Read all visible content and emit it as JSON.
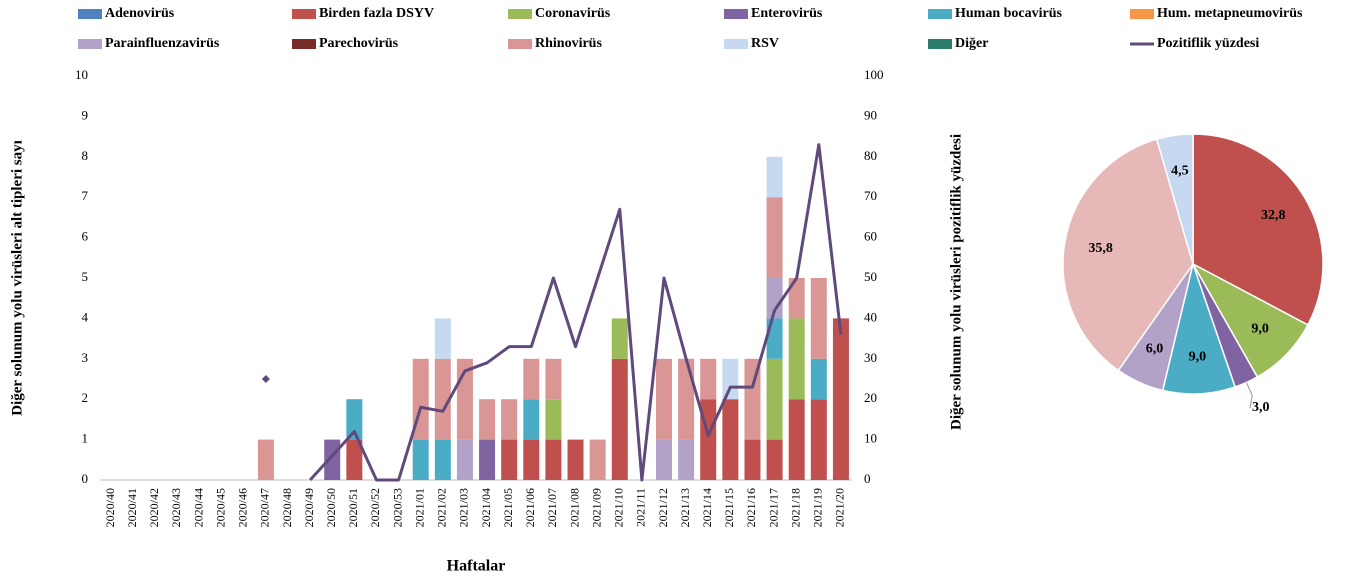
{
  "chart_data": [
    {
      "type": "bar",
      "stacked": true,
      "xlabel": "Haftalar",
      "ylabel": "Diğer solunum yolu virüsleri alt tipleri sayı",
      "y2label": "Diğer solunum yolu virüsleri pozitiflik yüzdesi",
      "categories": [
        "2020/40",
        "2020/41",
        "2020/42",
        "2020/43",
        "2020/44",
        "2020/45",
        "2020/46",
        "2020/47",
        "2020/48",
        "2020/49",
        "2020/50",
        "2020/51",
        "2020/52",
        "2020/53",
        "2021/01",
        "2021/02",
        "2021/03",
        "2021/04",
        "2021/05",
        "2021/06",
        "2021/07",
        "2021/08",
        "2021/09",
        "2021/10",
        "2021/11",
        "2021/12",
        "2021/13",
        "2021/14",
        "2021/15",
        "2021/16",
        "2021/17",
        "2021/18",
        "2021/19",
        "2021/20"
      ],
      "ylim": [
        0,
        10
      ],
      "yticks": [
        0,
        1,
        2,
        3,
        4,
        5,
        6,
        7,
        8,
        9,
        10
      ],
      "y2lim": [
        0,
        100
      ],
      "y2ticks": [
        0,
        10,
        20,
        30,
        40,
        50,
        60,
        70,
        80,
        90,
        100
      ],
      "series": [
        {
          "name": "Adenovirüs",
          "color": "#4f81bd",
          "values": [
            0,
            0,
            0,
            0,
            0,
            0,
            0,
            0,
            0,
            0,
            0,
            0,
            0,
            0,
            0,
            0,
            0,
            0,
            0,
            0,
            0,
            0,
            0,
            0,
            0,
            0,
            0,
            0,
            0,
            0,
            0,
            0,
            0,
            0
          ]
        },
        {
          "name": "Birden fazla DSYV",
          "color": "#c0504d",
          "values": [
            0,
            0,
            0,
            0,
            0,
            0,
            0,
            0,
            0,
            0,
            0,
            1,
            0,
            0,
            0,
            0,
            0,
            0,
            1,
            1,
            1,
            1,
            0,
            3,
            0,
            0,
            0,
            2,
            2,
            1,
            1,
            2,
            2,
            4
          ]
        },
        {
          "name": "Coronavirüs",
          "color": "#9bbb59",
          "values": [
            0,
            0,
            0,
            0,
            0,
            0,
            0,
            0,
            0,
            0,
            0,
            0,
            0,
            0,
            0,
            0,
            0,
            0,
            0,
            0,
            1,
            0,
            0,
            1,
            0,
            0,
            0,
            0,
            0,
            0,
            2,
            2,
            0,
            0
          ]
        },
        {
          "name": "Enterovirüs",
          "color": "#8064a2",
          "values": [
            0,
            0,
            0,
            0,
            0,
            0,
            0,
            0,
            0,
            0,
            1,
            0,
            0,
            0,
            0,
            0,
            0,
            1,
            0,
            0,
            0,
            0,
            0,
            0,
            0,
            0,
            0,
            0,
            0,
            0,
            0,
            0,
            0,
            0
          ]
        },
        {
          "name": "Human bocavirüs",
          "color": "#4bacc6",
          "values": [
            0,
            0,
            0,
            0,
            0,
            0,
            0,
            0,
            0,
            0,
            0,
            1,
            0,
            0,
            1,
            1,
            0,
            0,
            0,
            1,
            0,
            0,
            0,
            0,
            0,
            0,
            0,
            0,
            0,
            0,
            1,
            0,
            1,
            0
          ]
        },
        {
          "name": "Hum. metapneumovirüs",
          "color": "#f79646",
          "values": [
            0,
            0,
            0,
            0,
            0,
            0,
            0,
            0,
            0,
            0,
            0,
            0,
            0,
            0,
            0,
            0,
            0,
            0,
            0,
            0,
            0,
            0,
            0,
            0,
            0,
            0,
            0,
            0,
            0,
            0,
            0,
            0,
            0,
            0
          ]
        },
        {
          "name": "Parainfluenzavirüs",
          "color": "#b3a2c7",
          "values": [
            0,
            0,
            0,
            0,
            0,
            0,
            0,
            0,
            0,
            0,
            0,
            0,
            0,
            0,
            0,
            0,
            1,
            0,
            0,
            0,
            0,
            0,
            0,
            0,
            0,
            1,
            1,
            0,
            0,
            0,
            1,
            0,
            0,
            0
          ]
        },
        {
          "name": "Parechovirüs",
          "color": "#772c2a",
          "values": [
            0,
            0,
            0,
            0,
            0,
            0,
            0,
            0,
            0,
            0,
            0,
            0,
            0,
            0,
            0,
            0,
            0,
            0,
            0,
            0,
            0,
            0,
            0,
            0,
            0,
            0,
            0,
            0,
            0,
            0,
            0,
            0,
            0,
            0
          ]
        },
        {
          "name": "Rhinovirüs",
          "color": "#d99694",
          "values": [
            0,
            0,
            0,
            0,
            0,
            0,
            0,
            1,
            0,
            0,
            0,
            0,
            0,
            0,
            2,
            2,
            2,
            1,
            1,
            1,
            1,
            0,
            1,
            0,
            0,
            2,
            2,
            1,
            0,
            2,
            2,
            1,
            2,
            0
          ]
        },
        {
          "name": "RSV",
          "color": "#c6d9f0",
          "values": [
            0,
            0,
            0,
            0,
            0,
            0,
            0,
            0,
            0,
            0,
            0,
            0,
            0,
            0,
            0,
            1,
            0,
            0,
            0,
            0,
            0,
            0,
            0,
            0,
            0,
            0,
            0,
            0,
            1,
            0,
            1,
            0,
            0,
            0
          ]
        },
        {
          "name": "Diğer",
          "color": "#2c7d6e",
          "values": [
            0,
            0,
            0,
            0,
            0,
            0,
            0,
            0,
            0,
            0,
            0,
            0,
            0,
            0,
            0,
            0,
            0,
            0,
            0,
            0,
            0,
            0,
            0,
            0,
            0,
            0,
            0,
            0,
            0,
            0,
            0,
            0,
            0,
            0
          ]
        },
        {
          "name": "Pozitiflik yüzdesi",
          "color": "#604a7b",
          "type": "line",
          "axis": "y2",
          "values": [
            null,
            null,
            null,
            null,
            null,
            null,
            null,
            25,
            null,
            0,
            6,
            12,
            0,
            0,
            18,
            17,
            27,
            29,
            33,
            33,
            50,
            33,
            50,
            67,
            0,
            50,
            30,
            11,
            23,
            23,
            42,
            50,
            83,
            36
          ]
        }
      ]
    },
    {
      "type": "pie",
      "values": [
        32.8,
        9.0,
        3.0,
        9.0,
        6.0,
        35.8,
        4.5
      ],
      "value_labels": [
        "32,8",
        "9,0",
        "3,0",
        "9,0",
        "6,0",
        "35,8",
        "4,5"
      ],
      "colors": [
        "#c0504d",
        "#9bbb59",
        "#8064a2",
        "#4bacc6",
        "#b3a2c7",
        "#e6b9b8",
        "#c6d9f0"
      ]
    }
  ]
}
